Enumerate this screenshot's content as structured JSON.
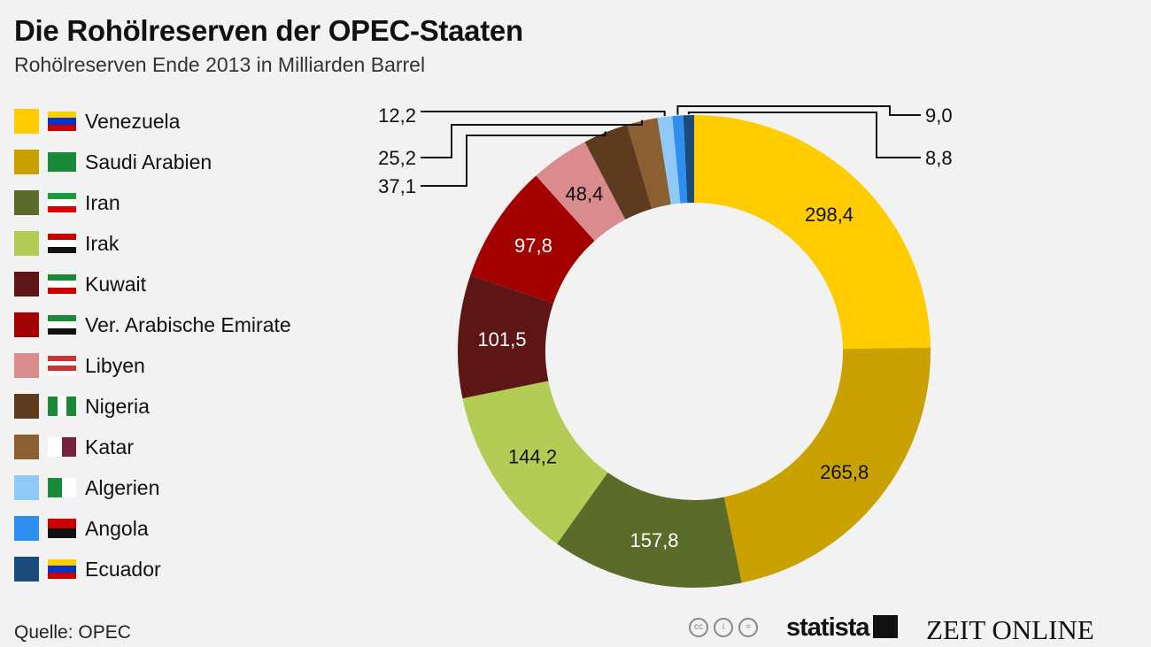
{
  "title": "Die Rohölreserven der OPEC-Staaten",
  "subtitle": "Rohölreserven Ende 2013 in Milliarden Barrel",
  "source": "Quelle: OPEC",
  "logos": {
    "statista": "statista",
    "zeit": "ZEIT ONLINE",
    "cc": [
      "cc",
      "i",
      "="
    ]
  },
  "chart_data": {
    "type": "pie",
    "variant": "donut",
    "title": "Die Rohölreserven der OPEC-Staaten",
    "subtitle": "Rohölreserven Ende 2013 in Milliarden Barrel",
    "legend_position": "left",
    "categories": [
      "Venezuela",
      "Saudi Arabien",
      "Iran",
      "Irak",
      "Kuwait",
      "Ver. Arabische Emirate",
      "Libyen",
      "Nigeria",
      "Katar",
      "Algerien",
      "Angola",
      "Ecuador"
    ],
    "values": [
      298.4,
      265.8,
      157.8,
      144.2,
      101.5,
      97.8,
      48.4,
      37.1,
      25.2,
      12.2,
      9.0,
      8.8
    ],
    "labels": [
      "298,4",
      "265,8",
      "157,8",
      "144,2",
      "101,5",
      "97,8",
      "48,4",
      "37,1",
      "25,2",
      "12,2",
      "9,0",
      "8,8"
    ],
    "colors": [
      "#ffcc00",
      "#c9a100",
      "#5b6b29",
      "#b3cc55",
      "#5e1515",
      "#a30000",
      "#d98b8d",
      "#5c3b1f",
      "#8c5f33",
      "#8fc9f7",
      "#2f8ff0",
      "#1b4b7b"
    ],
    "label_colors": [
      "#111",
      "#111",
      "#fff",
      "#111",
      "#fff",
      "#fff",
      "#111",
      "#111",
      "#111",
      "#111",
      "#111",
      "#111"
    ]
  }
}
